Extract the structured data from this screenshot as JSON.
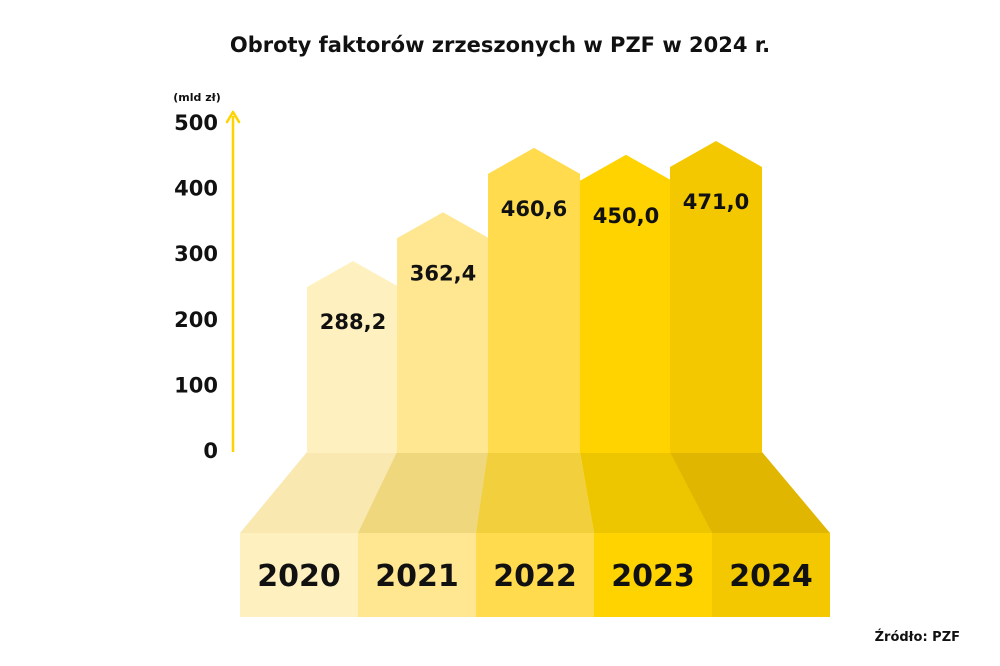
{
  "chart_data": {
    "type": "bar",
    "title": "Obroty faktorów zrzeszonych w PZF w 2024 r.",
    "unit_label": "(mld zł)",
    "categories": [
      "2020",
      "2021",
      "2022",
      "2023",
      "2024"
    ],
    "values": [
      288.2,
      362.4,
      460.6,
      450.0,
      471.0
    ],
    "value_labels": [
      "288,2",
      "362,4",
      "460,6",
      "450,0",
      "471,0"
    ],
    "ylim": [
      0,
      500
    ],
    "yticks": [
      "0",
      "100",
      "200",
      "300",
      "400",
      "500"
    ],
    "grid": false,
    "legend": "none",
    "source": "Źródło: PZF"
  },
  "colors": {
    "bars": [
      "#FFF1BF",
      "#FFE691",
      "#FFDB4D",
      "#FFD300",
      "#F4C800"
    ],
    "ramps": [
      "#F9E8B0",
      "#EFD77E",
      "#F2CF3C",
      "#EEC600",
      "#E0B600"
    ],
    "bases": [
      "#FFF1BF",
      "#FFE691",
      "#FFDB4D",
      "#FFD300",
      "#F4C800"
    ],
    "axis": "#FFD300",
    "text": "#111111"
  }
}
